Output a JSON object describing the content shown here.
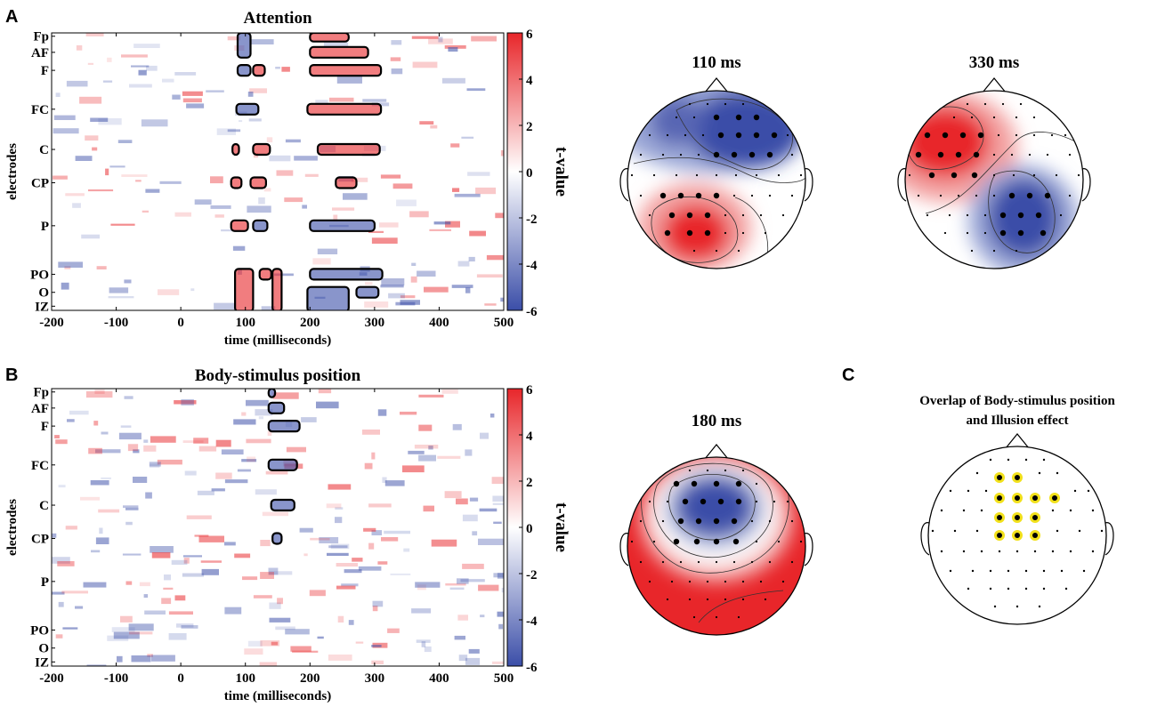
{
  "panel_letters": [
    "A",
    "B",
    "C"
  ],
  "colors": {
    "positive": "#e8262a",
    "negative": "#3b4ea8",
    "neutral": "#ffffff",
    "outline": "#000000",
    "overlap_highlight": "#f2e11b"
  },
  "chart_data": [
    {
      "type": "heatmap",
      "panel": "A",
      "title": "Attention",
      "xlabel": "time (milliseconds)",
      "ylabel": "electrodes",
      "xlim": [
        -200,
        500
      ],
      "xticks": [
        -200,
        -100,
        0,
        100,
        200,
        300,
        400,
        500
      ],
      "y_categories": [
        "Fp",
        "AF",
        "F",
        "FC",
        "C",
        "CP",
        "P",
        "PO",
        "O",
        "IZ"
      ],
      "colorbar": {
        "label": "t-value",
        "range": [
          -6,
          6
        ],
        "ticks": [
          6,
          4,
          2,
          0,
          -2,
          -4,
          -6
        ]
      },
      "significant_clusters": [
        {
          "sign": "negative",
          "time_ms": [
            88,
            108
          ],
          "electrodes": [
            "Fp",
            "AF"
          ]
        },
        {
          "sign": "negative",
          "time_ms": [
            88,
            108
          ],
          "electrodes": [
            "F",
            "F"
          ]
        },
        {
          "sign": "negative",
          "time_ms": [
            86,
            120
          ],
          "electrodes": [
            "FC",
            "FC"
          ]
        },
        {
          "sign": "positive",
          "time_ms": [
            112,
            130
          ],
          "electrodes": [
            "F",
            "F"
          ]
        },
        {
          "sign": "positive",
          "time_ms": [
            112,
            138
          ],
          "electrodes": [
            "C",
            "C"
          ]
        },
        {
          "sign": "positive",
          "time_ms": [
            80,
            90
          ],
          "electrodes": [
            "C",
            "C"
          ]
        },
        {
          "sign": "positive",
          "time_ms": [
            78,
            94
          ],
          "electrodes": [
            "CP",
            "CP"
          ]
        },
        {
          "sign": "positive",
          "time_ms": [
            108,
            132
          ],
          "electrodes": [
            "CP",
            "CP"
          ]
        },
        {
          "sign": "positive",
          "time_ms": [
            78,
            104
          ],
          "electrodes": [
            "P",
            "P"
          ]
        },
        {
          "sign": "negative",
          "time_ms": [
            112,
            134
          ],
          "electrodes": [
            "P",
            "P"
          ]
        },
        {
          "sign": "positive",
          "time_ms": [
            84,
            112
          ],
          "electrodes": [
            "PO",
            "IZ"
          ]
        },
        {
          "sign": "positive",
          "time_ms": [
            122,
            140
          ],
          "electrodes": [
            "PO",
            "PO"
          ]
        },
        {
          "sign": "positive",
          "time_ms": [
            142,
            156
          ],
          "electrodes": [
            "PO",
            "IZ"
          ]
        },
        {
          "sign": "positive",
          "time_ms": [
            200,
            260
          ],
          "electrodes": [
            "Fp",
            "Fp"
          ]
        },
        {
          "sign": "positive",
          "time_ms": [
            200,
            290
          ],
          "electrodes": [
            "AF",
            "AF"
          ]
        },
        {
          "sign": "positive",
          "time_ms": [
            200,
            310
          ],
          "electrodes": [
            "F",
            "F"
          ]
        },
        {
          "sign": "positive",
          "time_ms": [
            196,
            310
          ],
          "electrodes": [
            "FC",
            "FC"
          ]
        },
        {
          "sign": "positive",
          "time_ms": [
            212,
            308
          ],
          "electrodes": [
            "C",
            "C"
          ]
        },
        {
          "sign": "positive",
          "time_ms": [
            240,
            272
          ],
          "electrodes": [
            "CP",
            "CP"
          ]
        },
        {
          "sign": "negative",
          "time_ms": [
            200,
            300
          ],
          "electrodes": [
            "P",
            "P"
          ]
        },
        {
          "sign": "negative",
          "time_ms": [
            200,
            312
          ],
          "electrodes": [
            "PO",
            "PO"
          ]
        },
        {
          "sign": "negative",
          "time_ms": [
            196,
            260
          ],
          "electrodes": [
            "O",
            "IZ"
          ]
        },
        {
          "sign": "negative",
          "time_ms": [
            272,
            306
          ],
          "electrodes": [
            "O",
            "O"
          ]
        }
      ]
    },
    {
      "type": "heatmap",
      "panel": "B",
      "title": "Body-stimulus position",
      "xlabel": "time (milliseconds)",
      "ylabel": "electrodes",
      "xlim": [
        -200,
        500
      ],
      "xticks": [
        -200,
        -100,
        0,
        100,
        200,
        300,
        400,
        500
      ],
      "y_categories": [
        "Fp",
        "AF",
        "F",
        "FC",
        "C",
        "CP",
        "P",
        "PO",
        "O",
        "IZ"
      ],
      "colorbar": {
        "label": "t-value",
        "range": [
          -6,
          6
        ],
        "ticks": [
          6,
          4,
          2,
          0,
          -2,
          -4,
          -6
        ]
      },
      "significant_clusters": [
        {
          "sign": "negative",
          "time_ms": [
            136,
            146
          ],
          "electrodes": [
            "Fp",
            "Fp"
          ]
        },
        {
          "sign": "negative",
          "time_ms": [
            136,
            160
          ],
          "electrodes": [
            "AF",
            "AF"
          ]
        },
        {
          "sign": "negative",
          "time_ms": [
            136,
            184
          ],
          "electrodes": [
            "F",
            "F"
          ]
        },
        {
          "sign": "negative",
          "time_ms": [
            136,
            180
          ],
          "electrodes": [
            "FC",
            "FC"
          ]
        },
        {
          "sign": "negative",
          "time_ms": [
            140,
            176
          ],
          "electrodes": [
            "C",
            "C"
          ]
        },
        {
          "sign": "negative",
          "time_ms": [
            142,
            156
          ],
          "electrodes": [
            "CP",
            "CP"
          ]
        }
      ]
    },
    {
      "type": "topoplot",
      "panel": "A",
      "title": "110 ms",
      "positive_region": "left posterior",
      "negative_region": "right frontal-central"
    },
    {
      "type": "topoplot",
      "panel": "A",
      "title": "330 ms",
      "positive_region": "left frontal",
      "negative_region": "right central-parietal"
    },
    {
      "type": "topoplot",
      "panel": "B",
      "title": "180 ms",
      "positive_region": "lateral and posterior",
      "negative_region": "frontal-central"
    },
    {
      "type": "topoplot",
      "panel": "C",
      "title": "Overlap of Body-stimulus position",
      "title_line2": "and Illusion effect",
      "highlighted_electrode_count": 12
    }
  ]
}
